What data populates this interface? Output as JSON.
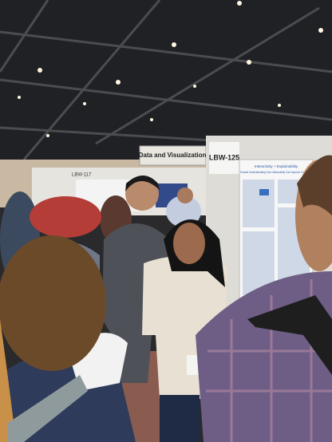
{
  "signs": {
    "section": "Data and Visualization",
    "board_main": "LBW-125",
    "board_left": "LBW-117"
  },
  "poster": {
    "topic": "Interactivity + Explainability",
    "title": "Toward Understanding How Interactivity Can Improve Computer"
  }
}
